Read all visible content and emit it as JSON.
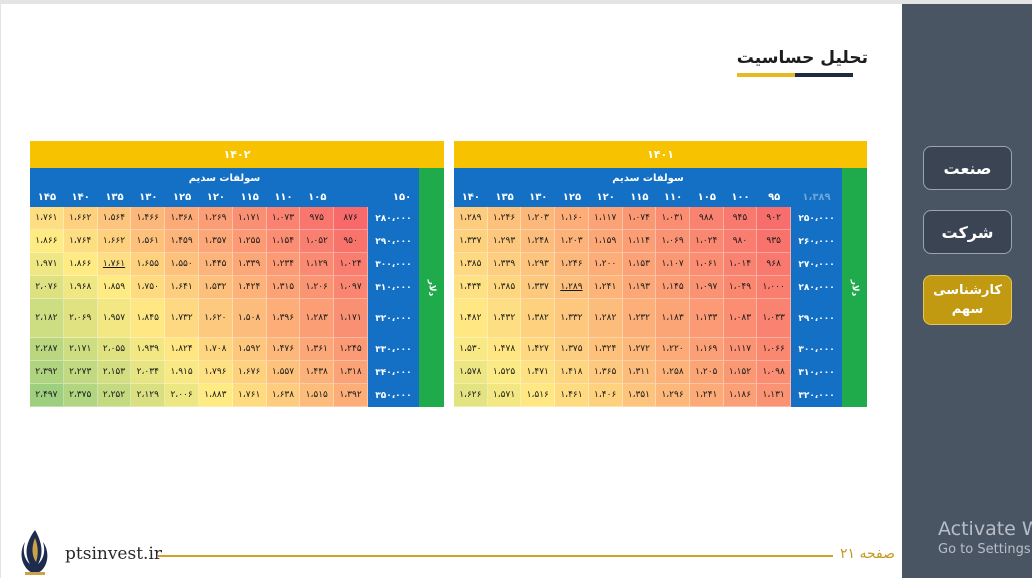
{
  "title": "تحلیل حساسیت",
  "sidebar": {
    "items": [
      {
        "label": "صنعت",
        "active": false
      },
      {
        "label": "شرکت",
        "active": false
      },
      {
        "label": "کارشناسی سهم",
        "active": true
      }
    ]
  },
  "colors": {
    "sidebar": "#4a5564",
    "year_bar": "#f7c200",
    "header_blue": "#1470c5",
    "row_green": "#1fab4c",
    "active": "#c29a12",
    "low": "#f8696b",
    "mid": "#ffeb84",
    "high": "#63be7b"
  },
  "footer": {
    "site": "ptsinvest.ir",
    "page_label": "صفحه ۲۱",
    "activate_line1": "Activate Windows",
    "activate_line2": "Go to Settings to activate Windows."
  },
  "tables": [
    {
      "id": "t1402",
      "year": "۱۴۰۲",
      "header_title": "سولفات سدیم",
      "side_label": "دلار",
      "columns": [
        "۱۰۵",
        "۱۱۰",
        "۱۱۵",
        "۱۲۰",
        "۱۲۵",
        "۱۳۰",
        "۱۳۵",
        "۱۴۰",
        "۱۴۵",
        "۱۵۰"
      ],
      "faded_columns": [],
      "rows": [
        {
          "label": "۲۸۰،۰۰۰",
          "values": [
            "۸۷۶",
            "۹۷۵",
            "۱،۰۷۳",
            "۱،۱۷۱",
            "۱،۲۶۹",
            "۱،۳۶۸",
            "۱،۴۶۶",
            "۱،۵۶۴",
            "۱،۶۶۲",
            "۱،۷۶۱"
          ],
          "levels": [
            0.0,
            0.05,
            0.1,
            0.15,
            0.2,
            0.25,
            0.3,
            0.35,
            0.4,
            0.45
          ]
        },
        {
          "label": "۲۹۰،۰۰۰",
          "values": [
            "۹۵۰",
            "۱،۰۵۲",
            "۱،۱۵۴",
            "۱،۲۵۵",
            "۱،۳۵۷",
            "۱،۴۵۹",
            "۱،۵۶۱",
            "۱،۶۶۲",
            "۱،۷۶۴",
            "۱،۸۶۶"
          ],
          "levels": [
            0.04,
            0.09,
            0.14,
            0.19,
            0.24,
            0.29,
            0.34,
            0.4,
            0.45,
            0.5
          ]
        },
        {
          "label": "۳۰۰،۰۰۰",
          "values": [
            "۱،۰۲۴",
            "۱،۱۲۹",
            "۱،۲۳۴",
            "۱،۳۳۹",
            "۱،۴۴۵",
            "۱،۵۵۰",
            "۱،۶۵۵",
            "۱،۷۶۱",
            "۱،۸۶۶",
            "۱،۹۷۱"
          ],
          "levels": [
            0.08,
            0.13,
            0.19,
            0.24,
            0.29,
            0.34,
            0.4,
            0.45,
            0.5,
            0.55
          ],
          "underlined": [
            7
          ]
        },
        {
          "label": "۳۱۰،۰۰۰",
          "values": [
            "۱،۰۹۷",
            "۱،۲۰۶",
            "۱،۳۱۵",
            "۱،۴۲۴",
            "۱،۵۳۲",
            "۱،۶۴۱",
            "۱،۷۵۰",
            "۱،۸۵۹",
            "۱،۹۶۸",
            "۲،۰۷۶"
          ],
          "levels": [
            0.11,
            0.17,
            0.22,
            0.28,
            0.33,
            0.39,
            0.44,
            0.5,
            0.55,
            0.61
          ]
        },
        {
          "label": "۳۲۰،۰۰۰",
          "values": [
            "۱،۱۷۱",
            "۱،۲۸۳",
            "۱،۳۹۶",
            "۱،۵۰۸",
            "۱،۶۲۰",
            "۱،۷۳۲",
            "۱،۸۴۵",
            "۱،۹۵۷",
            "۲،۰۶۹",
            "۲،۱۸۲"
          ],
          "levels": [
            0.15,
            0.2,
            0.26,
            0.32,
            0.37,
            0.43,
            0.49,
            0.54,
            0.6,
            0.66
          ]
        },
        {
          "label": "۳۳۰،۰۰۰",
          "values": [
            "۱،۲۴۵",
            "۱،۳۶۱",
            "۱،۴۷۶",
            "۱،۵۹۲",
            "۱،۷۰۸",
            "۱،۸۲۴",
            "۱،۹۳۹",
            "۲،۰۵۵",
            "۲،۱۷۱",
            "۲،۲۸۷"
          ],
          "levels": [
            0.19,
            0.24,
            0.3,
            0.36,
            0.42,
            0.48,
            0.54,
            0.6,
            0.66,
            0.72
          ]
        },
        {
          "label": "۳۴۰،۰۰۰",
          "values": [
            "۱،۳۱۸",
            "۱،۴۳۸",
            "۱،۵۵۷",
            "۱،۶۷۶",
            "۱،۷۹۶",
            "۱،۹۱۵",
            "۲،۰۳۴",
            "۲،۱۵۳",
            "۲،۲۷۳",
            "۲،۳۹۲"
          ],
          "levels": [
            0.22,
            0.28,
            0.34,
            0.4,
            0.46,
            0.52,
            0.58,
            0.64,
            0.7,
            0.76
          ]
        },
        {
          "label": "۳۵۰،۰۰۰",
          "values": [
            "۱،۳۹۲",
            "۱،۵۱۵",
            "۱،۶۳۸",
            "۱،۷۶۱",
            "۱،۸۸۳",
            "۲،۰۰۶",
            "۲،۱۲۹",
            "۲،۲۵۲",
            "۲،۳۷۵",
            "۲،۴۹۷"
          ],
          "levels": [
            0.26,
            0.32,
            0.38,
            0.44,
            0.5,
            0.56,
            0.62,
            0.69,
            0.75,
            0.81
          ]
        }
      ]
    },
    {
      "id": "t1401",
      "year": "۱۴۰۱",
      "header_title": "سولفات سدیم",
      "side_label": "دلار",
      "columns": [
        "۱،۳۸۹",
        "۹۵",
        "۱۰۰",
        "۱۰۵",
        "۱۱۰",
        "۱۱۵",
        "۱۲۰",
        "۱۲۵",
        "۱۳۰",
        "۱۳۵",
        "۱۴۰"
      ],
      "faded_columns": [
        0
      ],
      "rows": [
        {
          "label": "۲۵۰،۰۰۰",
          "values": [
            "۹۰۲",
            "۹۴۵",
            "۹۸۸",
            "۱،۰۳۱",
            "۱،۰۷۴",
            "۱،۱۱۷",
            "۱،۱۶۰",
            "۱،۲۰۳",
            "۱،۲۴۶",
            "۱،۲۸۹"
          ],
          "levels": [
            0.02,
            0.06,
            0.1,
            0.14,
            0.18,
            0.22,
            0.26,
            0.3,
            0.34,
            0.38
          ]
        },
        {
          "label": "۲۶۰،۰۰۰",
          "values": [
            "۹۳۵",
            "۹۸۰",
            "۱،۰۲۴",
            "۱،۰۶۹",
            "۱،۱۱۴",
            "۱،۱۵۹",
            "۱،۲۰۳",
            "۱،۲۴۸",
            "۱،۲۹۳",
            "۱،۳۳۷"
          ],
          "levels": [
            0.04,
            0.08,
            0.12,
            0.16,
            0.2,
            0.24,
            0.28,
            0.32,
            0.36,
            0.4
          ]
        },
        {
          "label": "۲۷۰،۰۰۰",
          "values": [
            "۹۶۸",
            "۱،۰۱۴",
            "۱،۰۶۱",
            "۱،۱۰۷",
            "۱،۱۵۳",
            "۱،۲۰۰",
            "۱،۲۴۶",
            "۱،۲۹۳",
            "۱،۳۳۹",
            "۱،۳۸۵"
          ],
          "levels": [
            0.06,
            0.1,
            0.14,
            0.18,
            0.22,
            0.26,
            0.3,
            0.35,
            0.39,
            0.43
          ]
        },
        {
          "label": "۲۸۰،۰۰۰",
          "values": [
            "۱،۰۰۰",
            "۱،۰۴۹",
            "۱،۰۹۷",
            "۱،۱۴۵",
            "۱،۱۹۳",
            "۱،۲۴۱",
            "۱،۲۸۹",
            "۱،۳۳۷",
            "۱،۳۸۵",
            "۱،۴۳۴"
          ],
          "levels": [
            0.08,
            0.12,
            0.16,
            0.2,
            0.24,
            0.29,
            0.33,
            0.37,
            0.42,
            0.46
          ],
          "underlined": [
            6
          ]
        },
        {
          "label": "۲۹۰،۰۰۰",
          "values": [
            "۱،۰۳۳",
            "۱،۰۸۳",
            "۱،۱۳۳",
            "۱،۱۸۳",
            "۱،۲۳۲",
            "۱،۲۸۲",
            "۱،۳۳۲",
            "۱،۳۸۲",
            "۱،۴۳۲",
            "۱،۴۸۲"
          ],
          "levels": [
            0.1,
            0.14,
            0.19,
            0.23,
            0.27,
            0.32,
            0.36,
            0.4,
            0.45,
            0.49
          ]
        },
        {
          "label": "۳۰۰،۰۰۰",
          "values": [
            "۱،۰۶۶",
            "۱،۱۱۷",
            "۱،۱۶۹",
            "۱،۲۲۰",
            "۱،۲۷۲",
            "۱،۳۲۴",
            "۱،۳۷۵",
            "۱،۴۲۷",
            "۱،۴۷۸",
            "۱،۵۳۰"
          ],
          "levels": [
            0.12,
            0.16,
            0.21,
            0.25,
            0.3,
            0.34,
            0.39,
            0.43,
            0.48,
            0.52
          ]
        },
        {
          "label": "۳۱۰،۰۰۰",
          "values": [
            "۱،۰۹۸",
            "۱،۱۵۲",
            "۱،۲۰۵",
            "۱،۲۵۸",
            "۱،۳۱۱",
            "۱،۳۶۵",
            "۱،۴۱۸",
            "۱،۴۷۱",
            "۱،۵۲۵",
            "۱،۵۷۸"
          ],
          "levels": [
            0.14,
            0.18,
            0.23,
            0.28,
            0.32,
            0.37,
            0.42,
            0.46,
            0.51,
            0.56
          ]
        },
        {
          "label": "۳۲۰،۰۰۰",
          "values": [
            "۱،۱۳۱",
            "۱،۱۸۶",
            "۱،۲۴۱",
            "۱،۲۹۶",
            "۱،۳۵۱",
            "۱،۴۰۶",
            "۱،۴۶۱",
            "۱،۵۱۶",
            "۱،۵۷۱",
            "۱،۶۲۶"
          ],
          "levels": [
            0.16,
            0.21,
            0.25,
            0.3,
            0.35,
            0.4,
            0.44,
            0.49,
            0.54,
            0.59
          ]
        }
      ]
    }
  ]
}
